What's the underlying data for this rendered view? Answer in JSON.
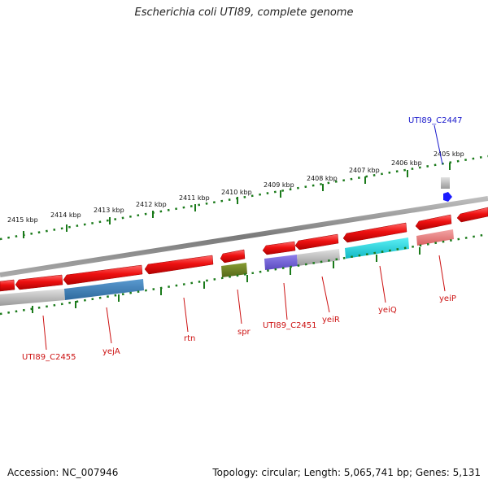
{
  "title": "Escherichia coli UTI89, complete genome",
  "footer": {
    "accession": "Accession: NC_007946",
    "summary": "Topology: circular; Length: 5,065,741 bp; Genes: 5,131"
  },
  "scale": {
    "labels": [
      "2415 kbp",
      "2414 kbp",
      "2413 kbp",
      "2412 kbp",
      "2411 kbp",
      "2410 kbp",
      "2409 kbp",
      "2408 kbp",
      "2407 kbp",
      "2406 kbp",
      "2405 kbp"
    ]
  },
  "gene_labels": {
    "utc2447": "UTI89_C2447",
    "utc2455": "UTI89_C2455",
    "yejA": "yejA",
    "rtn": "rtn",
    "spr": "spr",
    "utc2451": "UTI89_C2451",
    "yeiR": "yeiR",
    "yeiQ": "yeiQ",
    "yeiP": "yeiP"
  },
  "colors": {
    "cds": "#ee1111",
    "backbone": "#8a8a8a",
    "tick": "#1a7a1a",
    "gene_label": "#cc1111",
    "highlight": "#1a1acc",
    "band_grey": "#b8b8b8",
    "band_blue": "#3f7fb5",
    "band_olive": "#6b7f22",
    "band_purple": "#6f5fd0",
    "band_cyan": "#1fd2dc",
    "band_pink": "#e57f7f"
  }
}
